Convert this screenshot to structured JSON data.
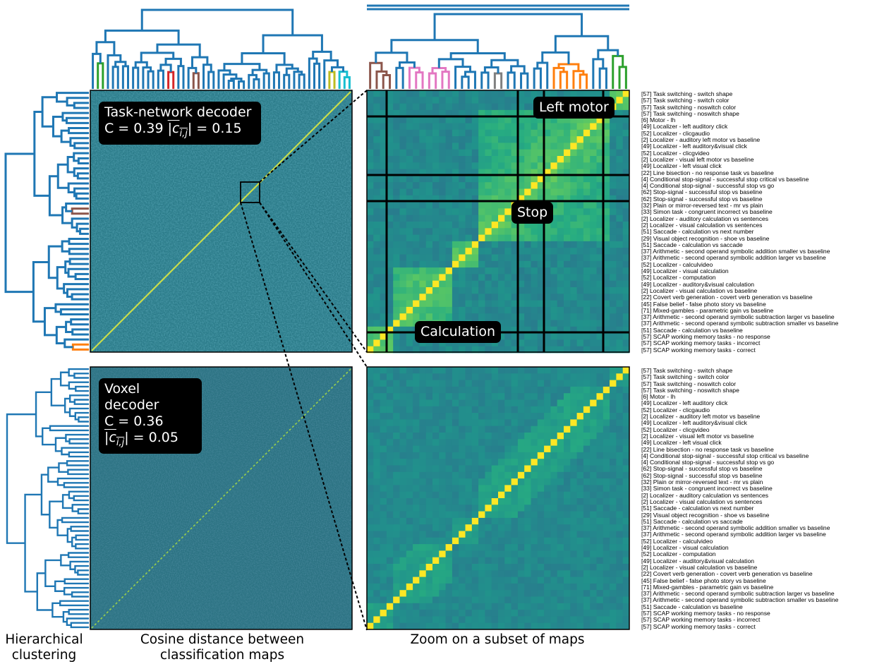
{
  "colors": {
    "dendro_blue": "#1f77b4",
    "orange": "#ff7f0e",
    "green": "#2ca02c",
    "red": "#d62728",
    "purple": "#9467bd",
    "brown": "#8c564b",
    "pink": "#e377c2",
    "gray": "#7f7f7f",
    "olive": "#bcbd22",
    "cyan": "#17becf",
    "viridis_base": "#2a8a86",
    "viridis_high": "#fde725"
  },
  "boxes": {
    "task_decoder": {
      "line1": "Task-network decoder",
      "c_label": "C = 0.39",
      "cij_symbol": "|c",
      "cij_sub": "i,j",
      "cij_value": "| = 0.15"
    },
    "voxel_decoder": {
      "line1": "Voxel decoder",
      "line2": "C = 0.36",
      "cij_symbol": "|c",
      "cij_sub": "i,j",
      "cij_value": "| = 0.05"
    },
    "zoom_labels": {
      "left_motor": "Left motor",
      "stop": "Stop",
      "calculation": "Calculation"
    }
  },
  "bottom_labels": {
    "hierarchical": "Hierarchical\nclustering",
    "cosine": "Cosine distance between\nclassification maps",
    "zoom": "Zoom on a subset of maps"
  },
  "row_labels": [
    "[57] Task switching - switch shape",
    "[57] Task switching - switch color",
    "[57] Task switching - noswitch color",
    "[57] Task switching - noswitch shape",
    "[6] Motor - lh",
    "[49] Localizer - left auditory click",
    "[52] Localizer - clicgaudio",
    "[2] Localizer - auditory left motor vs baseline",
    "[49] Localizer - left auditory&visual click",
    "[52] Localizer - clicgvideo",
    "[2] Localizer - visual left motor vs baseline",
    "[49] Localizer - left visual click",
    "[22] Line bisection - no response task vs baseline",
    "[4] Conditional stop-signal - successful stop critical vs baseline",
    "[4] Conditional stop-signal - successful stop vs go",
    "[62] Stop-signal - successful stop vs baseline",
    "[62] Stop-signal - successful stop vs baseline",
    "[32] Plain or mirror-reversed text - mr vs plain",
    "[33] Simon task - congruent incorrect vs baseline",
    "[2] Localizer - auditory calculation vs sentences",
    "[2] Localizer - visual calculation vs sentences",
    "[51] Saccade - calculation vs next number",
    "[29] Visual object recognition - shoe vs baseline",
    "[51] Saccade - calculation vs saccade",
    "[37] Arithmetic - second operand symbolic addition smaller vs baseline",
    "[37] Arithmetic - second operand symbolic addition larger vs baseline",
    "[52] Localizer - calculvideo",
    "[49] Localizer - visual calculation",
    "[52] Localizer - computation",
    "[49] Localizer - auditory&visual calculation",
    "[2] Localizer - visual calculation vs baseline",
    "[22] Covert verb generation - covert verb generation vs baseline",
    "[45] False belief - false photo story vs baseline",
    "[71] Mixed-gambles - parametric gain vs baseline",
    "[37] Arithmetic - second operand symbolic subtraction larger vs baseline",
    "[37] Arithmetic - second operand symbolic subtraction smaller vs baseline",
    "[51] Saccade - calculation vs baseline",
    "[57] SCAP working memory tasks - no response",
    "[57] SCAP working memory tasks - incorrect",
    "[57] SCAP working memory tasks - correct"
  ]
}
